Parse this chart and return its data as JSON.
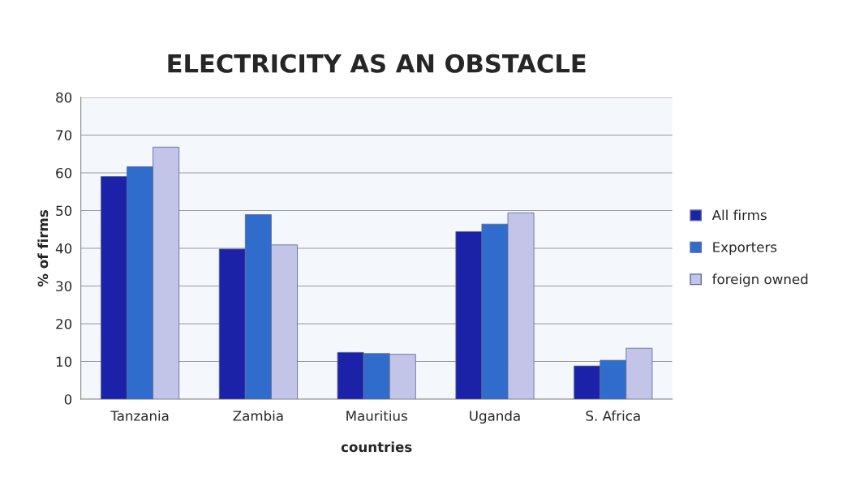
{
  "chart_data": {
    "type": "bar",
    "title": "ELECTRICITY AS AN OBSTACLE",
    "xlabel": "countries",
    "ylabel": "% of firms",
    "categories": [
      "Tanzania",
      "Zambia",
      "Mauritius",
      "Uganda",
      "S. Africa"
    ],
    "series": [
      {
        "name": "All firms",
        "color": "#1c22a8",
        "values": [
          59,
          39.8,
          12.4,
          44.4,
          8.8
        ]
      },
      {
        "name": "Exporters",
        "color": "#2f6ccc",
        "values": [
          61.6,
          48.9,
          12.1,
          46.4,
          10.3
        ]
      },
      {
        "name": "foreign owned",
        "color": "#c2c5e8",
        "values": [
          66.8,
          40.9,
          11.9,
          49.4,
          13.5
        ]
      }
    ],
    "ylim": [
      0,
      80
    ],
    "yticks": [
      0,
      10,
      20,
      30,
      40,
      50,
      60,
      70,
      80
    ],
    "grid": "y",
    "legend": "right"
  }
}
